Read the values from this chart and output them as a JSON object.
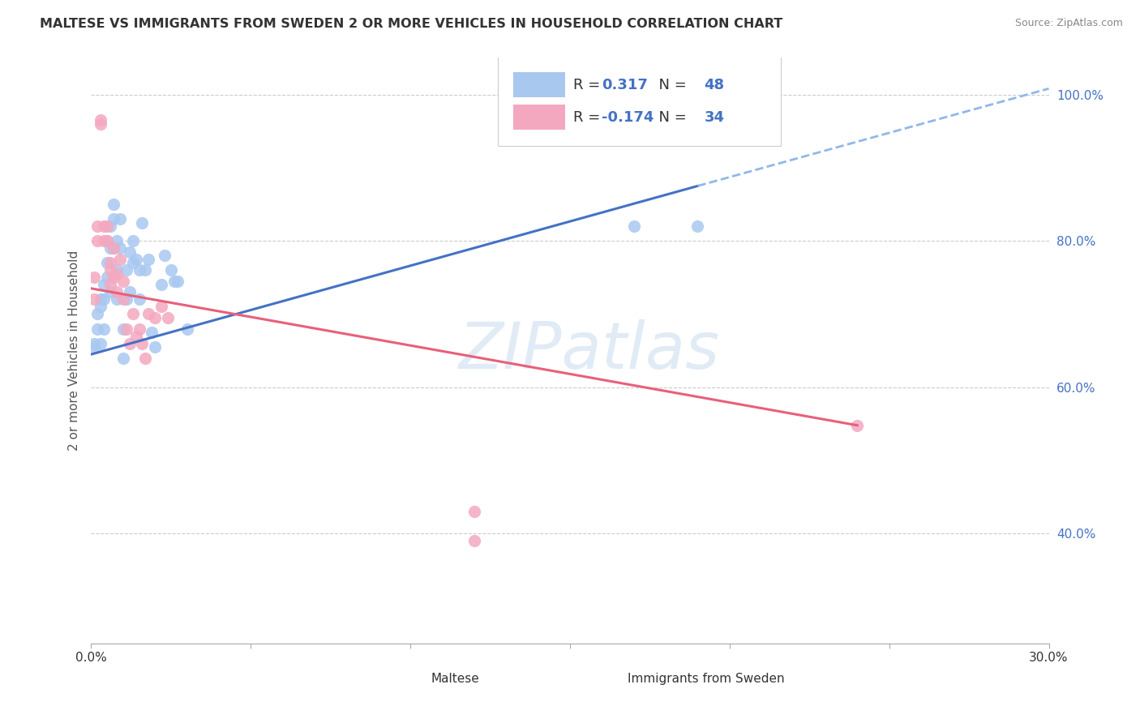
{
  "title": "MALTESE VS IMMIGRANTS FROM SWEDEN 2 OR MORE VEHICLES IN HOUSEHOLD CORRELATION CHART",
  "source": "Source: ZipAtlas.com",
  "ylabel": "2 or more Vehicles in Household",
  "xmin": 0.0,
  "xmax": 0.3,
  "ymin": 0.25,
  "ymax": 1.05,
  "y_ticks_right": [
    0.4,
    0.6,
    0.8,
    1.0
  ],
  "y_tick_labels_right": [
    "40.0%",
    "60.0%",
    "80.0%",
    "100.0%"
  ],
  "blue_color": "#A8C8F0",
  "pink_color": "#F4A8C0",
  "line_blue": "#4472C4",
  "line_pink": "#E8607A",
  "line_dashed_color": "#90B8E8",
  "watermark": "ZIPatlas",
  "legend_r_blue": "0.317",
  "legend_n_blue": "48",
  "legend_r_pink": "-0.174",
  "legend_n_pink": "34",
  "blue_line_x0": 0.0,
  "blue_line_y0": 0.645,
  "blue_line_x1": 0.19,
  "blue_line_y1": 0.875,
  "blue_line_x2": 0.3,
  "blue_line_y2": 1.008,
  "pink_line_x0": 0.0,
  "pink_line_y0": 0.735,
  "pink_line_x1": 0.24,
  "pink_line_y1": 0.548,
  "blue_scatter_x": [
    0.001,
    0.001,
    0.002,
    0.002,
    0.003,
    0.003,
    0.003,
    0.004,
    0.004,
    0.004,
    0.005,
    0.005,
    0.005,
    0.006,
    0.006,
    0.006,
    0.007,
    0.007,
    0.007,
    0.008,
    0.008,
    0.008,
    0.009,
    0.009,
    0.01,
    0.01,
    0.011,
    0.011,
    0.012,
    0.012,
    0.013,
    0.013,
    0.014,
    0.015,
    0.015,
    0.016,
    0.017,
    0.018,
    0.019,
    0.02,
    0.022,
    0.023,
    0.025,
    0.026,
    0.027,
    0.03,
    0.17,
    0.19
  ],
  "blue_scatter_y": [
    0.655,
    0.66,
    0.7,
    0.68,
    0.72,
    0.71,
    0.66,
    0.74,
    0.72,
    0.68,
    0.8,
    0.77,
    0.75,
    0.82,
    0.79,
    0.73,
    0.85,
    0.83,
    0.79,
    0.8,
    0.76,
    0.72,
    0.83,
    0.79,
    0.68,
    0.64,
    0.76,
    0.72,
    0.785,
    0.73,
    0.8,
    0.77,
    0.775,
    0.76,
    0.72,
    0.825,
    0.76,
    0.775,
    0.675,
    0.655,
    0.74,
    0.78,
    0.76,
    0.745,
    0.745,
    0.68,
    0.82,
    0.82
  ],
  "pink_scatter_x": [
    0.001,
    0.001,
    0.002,
    0.002,
    0.003,
    0.003,
    0.004,
    0.004,
    0.005,
    0.005,
    0.006,
    0.006,
    0.006,
    0.007,
    0.007,
    0.008,
    0.008,
    0.009,
    0.01,
    0.01,
    0.011,
    0.012,
    0.013,
    0.014,
    0.015,
    0.016,
    0.017,
    0.018,
    0.02,
    0.022,
    0.024,
    0.12,
    0.24,
    0.12
  ],
  "pink_scatter_y": [
    0.75,
    0.72,
    0.82,
    0.8,
    0.965,
    0.96,
    0.82,
    0.8,
    0.82,
    0.8,
    0.76,
    0.74,
    0.77,
    0.75,
    0.79,
    0.755,
    0.73,
    0.775,
    0.745,
    0.72,
    0.68,
    0.66,
    0.7,
    0.67,
    0.68,
    0.66,
    0.64,
    0.7,
    0.695,
    0.71,
    0.695,
    0.39,
    0.548,
    0.43
  ]
}
